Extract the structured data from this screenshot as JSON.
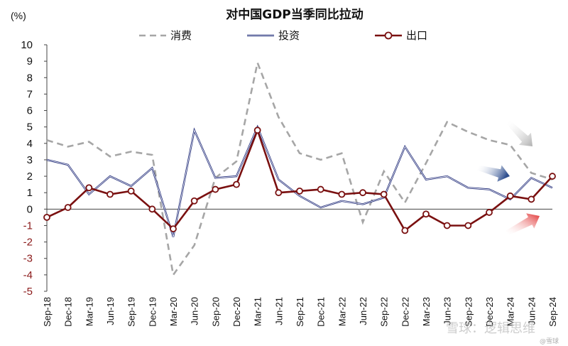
{
  "chart_data": {
    "type": "line",
    "title": "对中国GDP当季同比拉动",
    "unit_label": "(%)",
    "ylim": [
      -5,
      10
    ],
    "yticks": [
      10,
      9,
      8,
      7,
      6,
      5,
      4,
      3,
      2,
      1,
      0,
      -1,
      -2,
      -3,
      -4,
      -5
    ],
    "x_tick_labels": [
      "Sep-18",
      "Dec-18",
      "Mar-19",
      "Jun-19",
      "Sep-19",
      "Dec-19",
      "Mar-20",
      "Jun-20",
      "Sep-20",
      "Dec-20",
      "Mar-21",
      "Jun-21",
      "Sep-21",
      "Dec-21",
      "Mar-22",
      "Jun-22",
      "Sep-22",
      "Dec-22",
      "Mar-23",
      "Jun-23",
      "Sep-23",
      "Dec-23",
      "Mar-24",
      "Jun-24",
      "Sep-24"
    ],
    "legend_position": "top",
    "series": [
      {
        "name": "消费",
        "color": "#a6a6a6",
        "style": "dashed",
        "values": [
          4.2,
          3.8,
          4.1,
          3.2,
          3.5,
          3.3,
          -4.0,
          -2.2,
          1.9,
          2.9,
          8.9,
          5.6,
          3.4,
          3.0,
          3.4,
          -0.8,
          2.3,
          0.4,
          2.8,
          5.3,
          4.7,
          4.2,
          3.9,
          2.2,
          1.8
        ]
      },
      {
        "name": "投资",
        "color": "#1f2a78",
        "style": "solid",
        "values": [
          3.0,
          2.7,
          0.9,
          2.0,
          1.4,
          2.5,
          -1.7,
          4.8,
          1.9,
          2.0,
          5.0,
          1.8,
          0.8,
          0.1,
          0.5,
          0.3,
          0.7,
          3.8,
          1.8,
          2.0,
          1.3,
          1.2,
          0.6,
          1.9,
          1.3
        ]
      },
      {
        "name": "出口",
        "color": "#7a1010",
        "style": "solid-marker",
        "values": [
          -0.5,
          0.1,
          1.3,
          0.9,
          1.1,
          0.0,
          -1.2,
          0.5,
          1.2,
          1.5,
          4.8,
          1.0,
          1.1,
          1.2,
          0.9,
          1.0,
          0.9,
          -1.3,
          -0.3,
          -1.0,
          -1.0,
          -0.2,
          0.8,
          0.6,
          2.0
        ]
      }
    ],
    "annotation_arrows": [
      {
        "series": "消费",
        "color": "#b3b3b3",
        "direction": "down"
      },
      {
        "series": "投资",
        "color": "#2f4f8f",
        "direction": "down"
      },
      {
        "series": "出口",
        "color": "#e03030",
        "direction": "up"
      }
    ]
  },
  "watermark": {
    "main": "雪球：逻辑思维",
    "sub": "@雪球"
  }
}
